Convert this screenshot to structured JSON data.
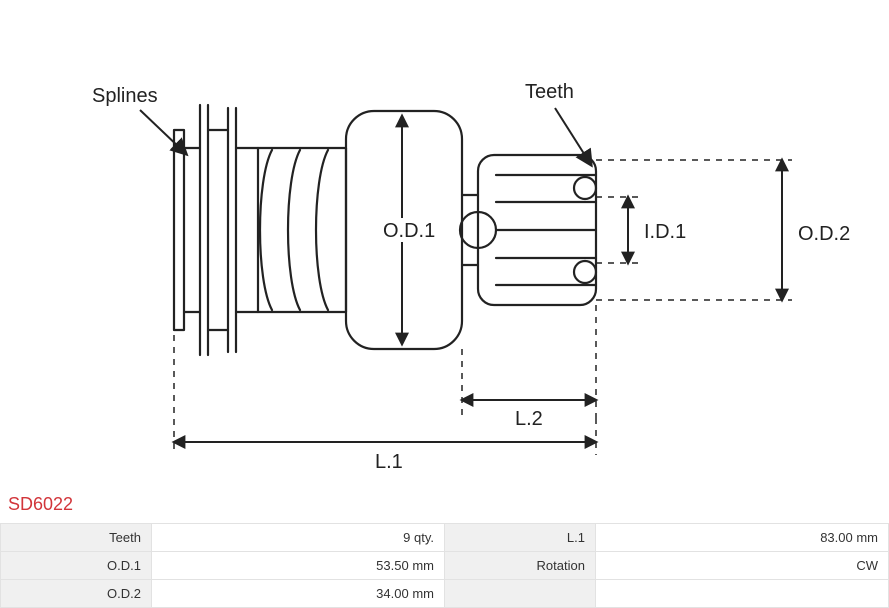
{
  "part_number": "SD6022",
  "diagram": {
    "labels": {
      "splines": "Splines",
      "teeth": "Teeth",
      "od1": "O.D.1",
      "id1": "I.D.1",
      "od2": "O.D.2",
      "l1": "L.1",
      "l2": "L.2"
    },
    "stroke_color": "#222222",
    "stroke_width": 2.2,
    "dash_pattern": "6,6",
    "text_color": "#222222",
    "label_fontsize": 20
  },
  "spec_table": {
    "rows": [
      {
        "label1": "Teeth",
        "value1": "9 qty.",
        "label2": "L.1",
        "value2": "83.00 mm"
      },
      {
        "label1": "O.D.1",
        "value1": "53.50 mm",
        "label2": "Rotation",
        "value2": "CW"
      },
      {
        "label1": "O.D.2",
        "value1": "34.00 mm",
        "label2": "",
        "value2": ""
      }
    ],
    "header_bg": "#f0f0f0",
    "cell_bg": "#ffffff",
    "border_color": "#e2e2e2",
    "text_color": "#333333",
    "fontsize": 13
  }
}
